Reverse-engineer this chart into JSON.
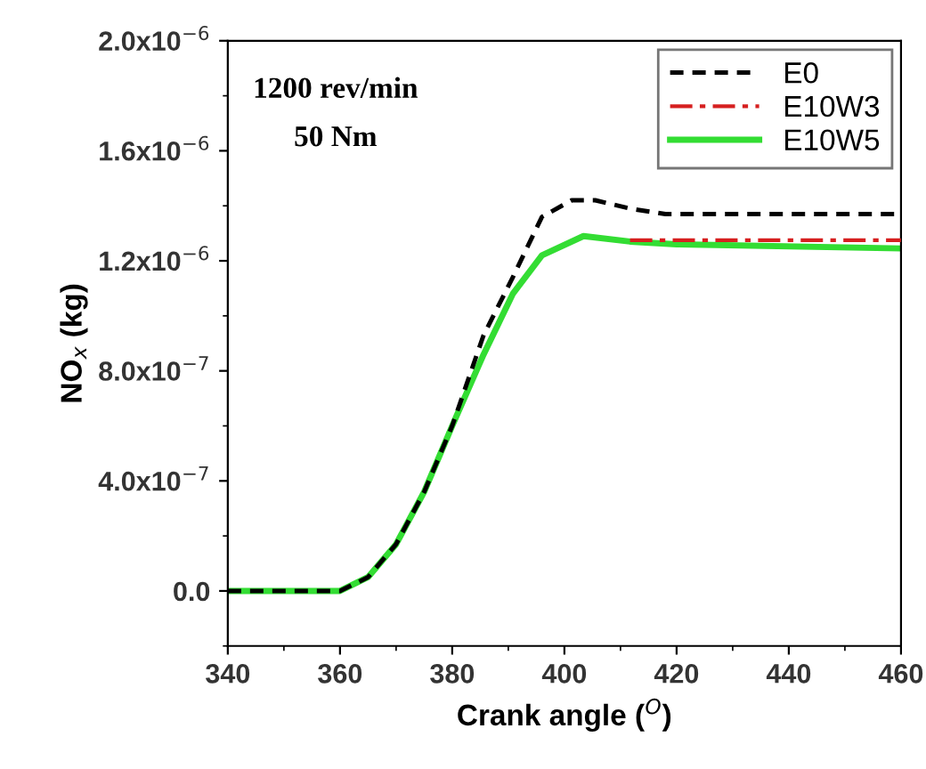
{
  "chart_data": {
    "type": "line",
    "xlabel": "Crank angle ($^{O}$)",
    "ylabel": "NO$_{x}$ (kg)",
    "annotations": [
      "1200 rev/min",
      "50 Nm"
    ],
    "series": [
      {
        "name": "E0",
        "color": "#000000",
        "line_style": "dashed",
        "x": [
          340,
          360,
          365,
          370,
          375,
          380,
          385.6,
          390.8,
          396,
          401.3,
          405.5,
          411.7,
          418,
          430,
          460
        ],
        "values": [
          0,
          0,
          5e-08,
          1.7e-07,
          3.6e-07,
          6e-07,
          9.3e-07,
          1.14e-06,
          1.36e-06,
          1.42e-06,
          1.42e-06,
          1.39e-06,
          1.37e-06,
          1.37e-06,
          1.37e-06
        ]
      },
      {
        "name": "E10W3",
        "color": "#d62020",
        "line_style": "dashdot",
        "x": [
          411.7,
          420,
          440,
          460
        ],
        "values": [
          1.275e-06,
          1.275e-06,
          1.275e-06,
          1.275e-06
        ]
      },
      {
        "name": "E10W5",
        "color": "#33dd33",
        "line_style": "solid",
        "x": [
          340,
          360,
          365,
          370,
          375,
          380,
          385.6,
          390.8,
          396,
          403.4,
          411.7,
          420,
          460
        ],
        "values": [
          0,
          0,
          5e-08,
          1.7e-07,
          3.6e-07,
          6e-07,
          8.6e-07,
          1.08e-06,
          1.22e-06,
          1.29e-06,
          1.27e-06,
          1.26e-06,
          1.245e-06
        ]
      }
    ],
    "xlim": [
      340,
      460
    ],
    "xticks": [
      340,
      360,
      380,
      400,
      420,
      440,
      460
    ],
    "ylim": [
      -2e-07,
      2e-06
    ],
    "yticks": [
      {
        "value": 0,
        "label": "0.0"
      },
      {
        "value": 4e-07,
        "label": "4.0x10$^{−7}$"
      },
      {
        "value": 8e-07,
        "label": "8.0x10$^{−7}$"
      },
      {
        "value": 1.2e-06,
        "label": "1.2x10$^{−6}$"
      },
      {
        "value": 1.6e-06,
        "label": "1.6x10$^{−6}$"
      },
      {
        "value": 2e-06,
        "label": "2.0x10$^{−6}$"
      }
    ],
    "legend": "top right",
    "grid": false
  }
}
